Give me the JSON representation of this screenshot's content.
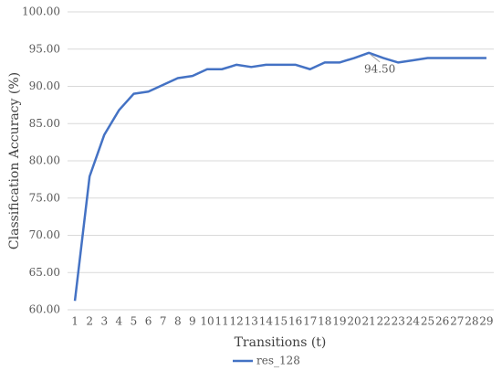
{
  "chart_data": {
    "type": "line",
    "categories": [
      "1",
      "2",
      "3",
      "4",
      "5",
      "6",
      "7",
      "8",
      "9",
      "10",
      "11",
      "12",
      "13",
      "14",
      "15",
      "16",
      "17",
      "18",
      "19",
      "20",
      "21",
      "22",
      "23",
      "24",
      "25",
      "26",
      "27",
      "28",
      "29"
    ],
    "series": [
      {
        "name": "res_128",
        "color": "#4472c4",
        "values": [
          61.2,
          77.9,
          83.5,
          86.8,
          89.0,
          89.3,
          90.2,
          91.1,
          91.4,
          92.3,
          92.3,
          92.9,
          92.6,
          92.9,
          92.9,
          92.9,
          92.3,
          93.2,
          93.2,
          93.8,
          94.5,
          93.8,
          93.2,
          93.5,
          93.8,
          93.8,
          93.8,
          93.8,
          93.8
        ],
        "value_labels": [
          null,
          null,
          null,
          null,
          null,
          null,
          null,
          null,
          null,
          null,
          null,
          null,
          null,
          null,
          null,
          null,
          null,
          null,
          null,
          null,
          "94.50",
          null,
          null,
          null,
          null,
          null,
          null,
          null,
          null
        ]
      }
    ],
    "xlabel": "Transitions (t)",
    "ylabel": "Classification Accuracy (%)",
    "ylim": [
      60,
      100
    ],
    "yticks": [
      {
        "value": 60,
        "label": "60.00"
      },
      {
        "value": 65,
        "label": "65.00"
      },
      {
        "value": 70,
        "label": "70.00"
      },
      {
        "value": 75,
        "label": "75.00"
      },
      {
        "value": 80,
        "label": "80.00"
      },
      {
        "value": 85,
        "label": "85.00"
      },
      {
        "value": 90,
        "label": "90.00"
      },
      {
        "value": 95,
        "label": "95.00"
      },
      {
        "value": 100,
        "label": "100.00"
      }
    ],
    "grid": true,
    "legend": "bottom"
  }
}
